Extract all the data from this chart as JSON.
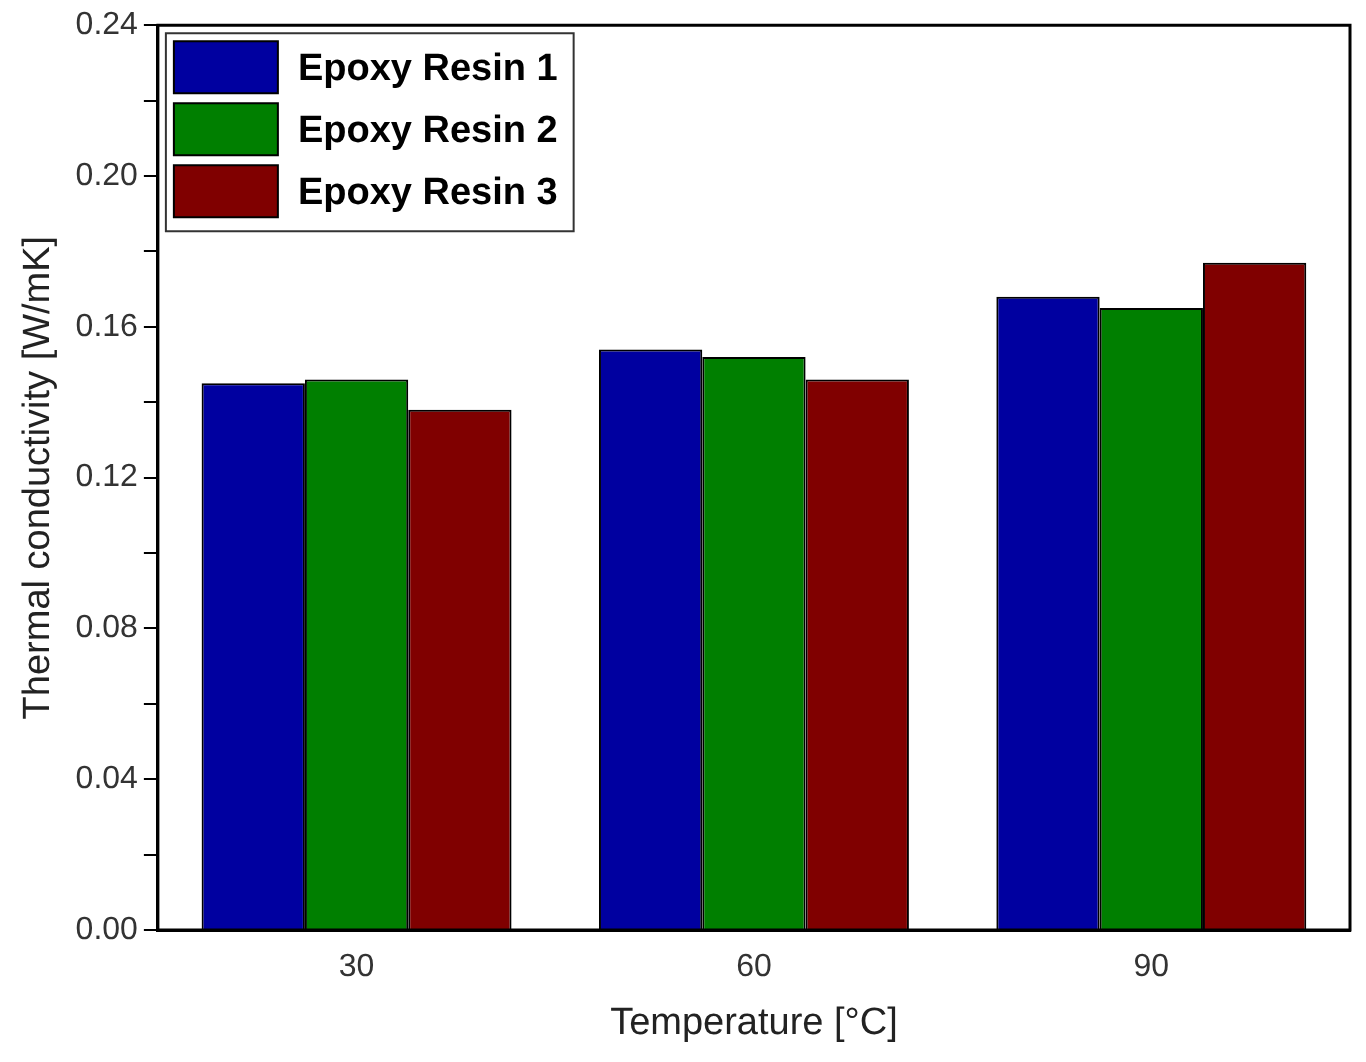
{
  "chart_data": {
    "type": "bar",
    "xlabel": "Temperature [°C]",
    "ylabel": "Thermal conductivity [W/mK]",
    "categories": [
      "30",
      "60",
      "90"
    ],
    "series": [
      {
        "name": "Epoxy Resin 1",
        "color": "#0000a0",
        "values": [
          0.145,
          0.154,
          0.168
        ]
      },
      {
        "name": "Epoxy Resin 2",
        "color": "#007f00",
        "values": [
          0.146,
          0.152,
          0.165
        ]
      },
      {
        "name": "Epoxy Resin 3",
        "color": "#800000",
        "values": [
          0.138,
          0.146,
          0.177
        ]
      }
    ],
    "ylim": [
      0,
      0.24
    ],
    "yticks": [
      {
        "value": 0,
        "label": "0.00"
      },
      {
        "value": 0.02,
        "label": null
      },
      0.04,
      {
        "value": 0.06,
        "label": null
      },
      0.08,
      {
        "value": 0.1,
        "label": null
      },
      0.12,
      {
        "value": 0.14,
        "label": null
      },
      0.16,
      {
        "value": 0.18,
        "label": null
      },
      {
        "value": 0.2,
        "label": "0.20"
      },
      {
        "value": 0.22,
        "label": null
      },
      0.24
    ],
    "grid": false,
    "legend": "top left"
  }
}
